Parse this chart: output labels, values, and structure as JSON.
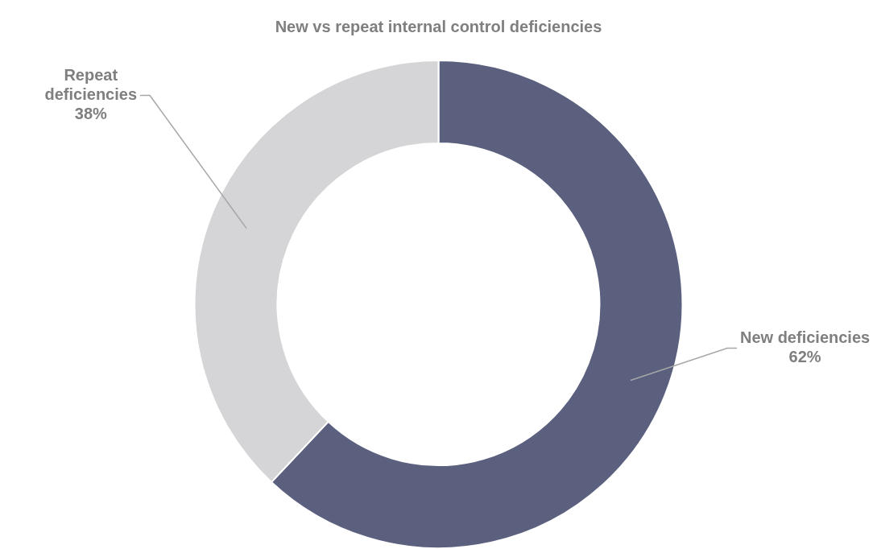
{
  "chart_data": {
    "type": "donut",
    "title": "New vs repeat internal control deficiencies",
    "categories": [
      "New deficiencies",
      "Repeat deficiencies"
    ],
    "values": [
      62,
      38
    ],
    "colors": [
      "#5a607e",
      "#d5d5d8"
    ],
    "value_labels": [
      "62%",
      "38%"
    ],
    "legend": false
  }
}
